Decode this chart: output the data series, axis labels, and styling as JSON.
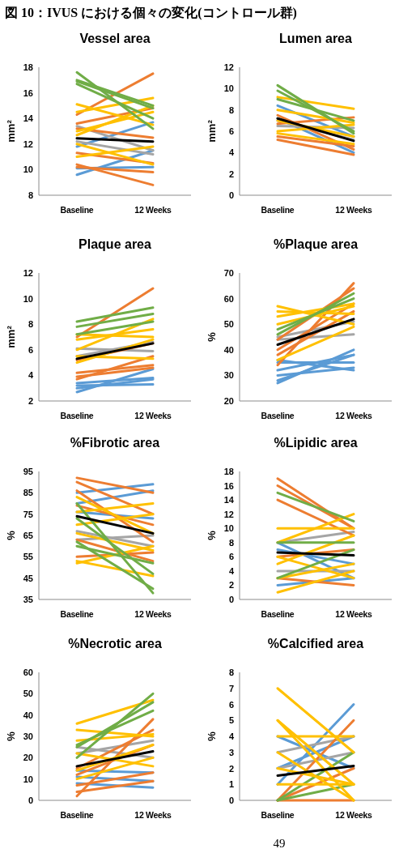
{
  "chart_data": [
    {
      "type": "line",
      "title": "Vessel area",
      "ylabel": "mm²",
      "categories": [
        "Baseline",
        "12 Weeks"
      ],
      "ylim": [
        8,
        18
      ],
      "yticks": [
        8,
        10,
        12,
        14,
        16,
        18
      ],
      "annotations": [
        "図 10：IVUS における個々の変化(コントロール群)"
      ],
      "series": [
        {
          "color": "#5b9bd5",
          "values": [
            9.6,
            11.5
          ]
        },
        {
          "color": "#5b9bd5",
          "values": [
            10.1,
            10.2
          ]
        },
        {
          "color": "#5b9bd5",
          "values": [
            11.8,
            13.7
          ]
        },
        {
          "color": "#a5a5a5",
          "values": [
            13.4,
            11.5
          ]
        },
        {
          "color": "#a5a5a5",
          "values": [
            12.2,
            11.2
          ]
        },
        {
          "color": "#ed7d31",
          "values": [
            14.3,
            17.5
          ]
        },
        {
          "color": "#ed7d31",
          "values": [
            13.6,
            14.8
          ]
        },
        {
          "color": "#ed7d31",
          "values": [
            10.4,
            8.8
          ]
        },
        {
          "color": "#ed7d31",
          "values": [
            10.2,
            9.8
          ]
        },
        {
          "color": "#ed7d31",
          "values": [
            11.3,
            10.5
          ]
        },
        {
          "color": "#ed7d31",
          "values": [
            13.2,
            12.5
          ]
        },
        {
          "color": "#ffc000",
          "values": [
            15.1,
            13.5
          ]
        },
        {
          "color": "#ffc000",
          "values": [
            14.5,
            15.6
          ]
        },
        {
          "color": "#ffc000",
          "values": [
            12.7,
            15.0
          ]
        },
        {
          "color": "#ffc000",
          "values": [
            12.0,
            10.4
          ]
        },
        {
          "color": "#ffc000",
          "values": [
            11.0,
            11.8
          ]
        },
        {
          "color": "#ffc000",
          "values": [
            13.0,
            14.5
          ]
        },
        {
          "color": "#70ad47",
          "values": [
            17.6,
            13.2
          ]
        },
        {
          "color": "#70ad47",
          "values": [
            16.9,
            14.8
          ]
        },
        {
          "color": "#70ad47",
          "values": [
            16.7,
            14.0
          ]
        },
        {
          "color": "#70ad47",
          "values": [
            17.0,
            15.0
          ]
        },
        {
          "color": "#000000",
          "values": [
            12.45,
            12.2
          ]
        }
      ]
    },
    {
      "type": "line",
      "title": "Lumen area",
      "ylabel": "mm²",
      "categories": [
        "Baseline",
        "12 Weeks"
      ],
      "ylim": [
        0,
        12
      ],
      "yticks": [
        0,
        2,
        4,
        6,
        8,
        10,
        12
      ],
      "series": [
        {
          "color": "#5b9bd5",
          "values": [
            8.4,
            5.5
          ]
        },
        {
          "color": "#5b9bd5",
          "values": [
            7.2,
            4.0
          ]
        },
        {
          "color": "#a5a5a5",
          "values": [
            7.0,
            5.2
          ]
        },
        {
          "color": "#a5a5a5",
          "values": [
            6.5,
            6.3
          ]
        },
        {
          "color": "#ed7d31",
          "values": [
            5.2,
            3.8
          ]
        },
        {
          "color": "#ed7d31",
          "values": [
            6.7,
            7.3
          ]
        },
        {
          "color": "#ed7d31",
          "values": [
            7.5,
            4.3
          ]
        },
        {
          "color": "#ed7d31",
          "values": [
            5.5,
            4.6
          ]
        },
        {
          "color": "#ffc000",
          "values": [
            9.2,
            8.1
          ]
        },
        {
          "color": "#ffc000",
          "values": [
            6.0,
            6.6
          ]
        },
        {
          "color": "#ffc000",
          "values": [
            5.8,
            4.8
          ]
        },
        {
          "color": "#ffc000",
          "values": [
            8.0,
            6.8
          ]
        },
        {
          "color": "#ffc000",
          "values": [
            7.0,
            5.5
          ]
        },
        {
          "color": "#70ad47",
          "values": [
            10.3,
            5.8
          ]
        },
        {
          "color": "#70ad47",
          "values": [
            9.8,
            6.0
          ]
        },
        {
          "color": "#70ad47",
          "values": [
            9.0,
            7.0
          ]
        },
        {
          "color": "#000000",
          "values": [
            7.2,
            5.1
          ]
        }
      ]
    },
    {
      "type": "line",
      "title": "Plaque area",
      "ylabel": "mm²",
      "categories": [
        "Baseline",
        "12 Weeks"
      ],
      "ylim": [
        2,
        12
      ],
      "yticks": [
        2,
        4,
        6,
        8,
        10,
        12
      ],
      "series": [
        {
          "color": "#5b9bd5",
          "values": [
            2.7,
            4.5
          ]
        },
        {
          "color": "#5b9bd5",
          "values": [
            3.2,
            3.3
          ]
        },
        {
          "color": "#5b9bd5",
          "values": [
            3.4,
            3.8
          ]
        },
        {
          "color": "#5b9bd5",
          "values": [
            3.0,
            3.7
          ]
        },
        {
          "color": "#a5a5a5",
          "values": [
            6.1,
            5.9
          ]
        },
        {
          "color": "#a5a5a5",
          "values": [
            5.5,
            6.6
          ]
        },
        {
          "color": "#ed7d31",
          "values": [
            7.0,
            10.8
          ]
        },
        {
          "color": "#ed7d31",
          "values": [
            3.7,
            5.5
          ]
        },
        {
          "color": "#ed7d31",
          "values": [
            4.2,
            4.8
          ]
        },
        {
          "color": "#ed7d31",
          "values": [
            5.2,
            6.5
          ]
        },
        {
          "color": "#ed7d31",
          "values": [
            3.9,
            4.6
          ]
        },
        {
          "color": "#ffc000",
          "values": [
            6.8,
            7.6
          ]
        },
        {
          "color": "#ffc000",
          "values": [
            6.0,
            8.4
          ]
        },
        {
          "color": "#ffc000",
          "values": [
            5.0,
            6.8
          ]
        },
        {
          "color": "#ffc000",
          "values": [
            5.5,
            5.3
          ]
        },
        {
          "color": "#ffc000",
          "values": [
            7.2,
            7.0
          ]
        },
        {
          "color": "#70ad47",
          "values": [
            8.2,
            9.3
          ]
        },
        {
          "color": "#70ad47",
          "values": [
            7.2,
            8.2
          ]
        },
        {
          "color": "#70ad47",
          "values": [
            7.8,
            8.8
          ]
        },
        {
          "color": "#000000",
          "values": [
            5.3,
            6.5
          ]
        }
      ]
    },
    {
      "type": "line",
      "title": "%Plaque area",
      "ylabel": "%",
      "categories": [
        "Baseline",
        "12 Weeks"
      ],
      "ylim": [
        20,
        70
      ],
      "yticks": [
        20,
        30,
        40,
        50,
        60,
        70
      ],
      "series": [
        {
          "color": "#5b9bd5",
          "values": [
            27,
            40
          ]
        },
        {
          "color": "#5b9bd5",
          "values": [
            30,
            33
          ]
        },
        {
          "color": "#5b9bd5",
          "values": [
            32,
            38
          ]
        },
        {
          "color": "#5b9bd5",
          "values": [
            35,
            35
          ]
        },
        {
          "color": "#5b9bd5",
          "values": [
            36,
            32
          ]
        },
        {
          "color": "#5b9bd5",
          "values": [
            28,
            38
          ]
        },
        {
          "color": "#a5a5a5",
          "values": [
            44,
            46
          ]
        },
        {
          "color": "#a5a5a5",
          "values": [
            45,
            51
          ]
        },
        {
          "color": "#ed7d31",
          "values": [
            34,
            66
          ]
        },
        {
          "color": "#ed7d31",
          "values": [
            40,
            58
          ]
        },
        {
          "color": "#ed7d31",
          "values": [
            44,
            64
          ]
        },
        {
          "color": "#ed7d31",
          "values": [
            38,
            55
          ]
        },
        {
          "color": "#ffc000",
          "values": [
            57,
            50
          ]
        },
        {
          "color": "#ffc000",
          "values": [
            55,
            54
          ]
        },
        {
          "color": "#ffc000",
          "values": [
            50,
            57
          ]
        },
        {
          "color": "#ffc000",
          "values": [
            36,
            49
          ]
        },
        {
          "color": "#ffc000",
          "values": [
            53,
            58
          ]
        },
        {
          "color": "#70ad47",
          "values": [
            46,
            62
          ]
        },
        {
          "color": "#70ad47",
          "values": [
            48,
            60
          ]
        },
        {
          "color": "#000000",
          "values": [
            42,
            52
          ]
        }
      ]
    },
    {
      "type": "line",
      "title": "%Fibrotic area",
      "ylabel": "%",
      "categories": [
        "Baseline",
        "12 Weeks"
      ],
      "ylim": [
        35,
        95
      ],
      "yticks": [
        35,
        45,
        55,
        65,
        75,
        85,
        95
      ],
      "series": [
        {
          "color": "#5b9bd5",
          "values": [
            85,
            89
          ]
        },
        {
          "color": "#5b9bd5",
          "values": [
            80,
            86
          ]
        },
        {
          "color": "#5b9bd5",
          "values": [
            76,
            73
          ]
        },
        {
          "color": "#a5a5a5",
          "values": [
            67,
            60
          ]
        },
        {
          "color": "#a5a5a5",
          "values": [
            63,
            65
          ]
        },
        {
          "color": "#ed7d31",
          "values": [
            92,
            85
          ]
        },
        {
          "color": "#ed7d31",
          "values": [
            90,
            75
          ]
        },
        {
          "color": "#ed7d31",
          "values": [
            86,
            62
          ]
        },
        {
          "color": "#ed7d31",
          "values": [
            79,
            70
          ]
        },
        {
          "color": "#ed7d31",
          "values": [
            63,
            53
          ]
        },
        {
          "color": "#ed7d31",
          "values": [
            55,
            57
          ]
        },
        {
          "color": "#ffc000",
          "values": [
            83,
            66
          ]
        },
        {
          "color": "#ffc000",
          "values": [
            76,
            80
          ]
        },
        {
          "color": "#ffc000",
          "values": [
            70,
            75
          ]
        },
        {
          "color": "#ffc000",
          "values": [
            53,
            46
          ]
        },
        {
          "color": "#ffc000",
          "values": [
            52,
            60
          ]
        },
        {
          "color": "#ffc000",
          "values": [
            66,
            58
          ]
        },
        {
          "color": "#70ad47",
          "values": [
            80,
            38
          ]
        },
        {
          "color": "#70ad47",
          "values": [
            73,
            47
          ]
        },
        {
          "color": "#70ad47",
          "values": [
            62,
            40
          ]
        },
        {
          "color": "#70ad47",
          "values": [
            60,
            52
          ]
        },
        {
          "color": "#000000",
          "values": [
            74,
            66
          ]
        }
      ]
    },
    {
      "type": "line",
      "title": "%Lipidic area",
      "ylabel": "%",
      "categories": [
        "Baseline",
        "12 Weeks"
      ],
      "ylim": [
        0,
        18
      ],
      "yticks": [
        0,
        2,
        4,
        6,
        8,
        10,
        12,
        14,
        16,
        18
      ],
      "series": [
        {
          "color": "#5b9bd5",
          "values": [
            8,
            3
          ]
        },
        {
          "color": "#5b9bd5",
          "values": [
            2,
            3
          ]
        },
        {
          "color": "#5b9bd5",
          "values": [
            7,
            5
          ]
        },
        {
          "color": "#a5a5a5",
          "values": [
            8,
            9.5
          ]
        },
        {
          "color": "#a5a5a5",
          "values": [
            4,
            4
          ]
        },
        {
          "color": "#ed7d31",
          "values": [
            17,
            10
          ]
        },
        {
          "color": "#ed7d31",
          "values": [
            16,
            10
          ]
        },
        {
          "color": "#ed7d31",
          "values": [
            14,
            9
          ]
        },
        {
          "color": "#ed7d31",
          "values": [
            3,
            2
          ]
        },
        {
          "color": "#ed7d31",
          "values": [
            6,
            7
          ]
        },
        {
          "color": "#ffc000",
          "values": [
            10,
            10
          ]
        },
        {
          "color": "#ffc000",
          "values": [
            8,
            12
          ]
        },
        {
          "color": "#ffc000",
          "values": [
            1,
            4
          ]
        },
        {
          "color": "#ffc000",
          "values": [
            6,
            3
          ]
        },
        {
          "color": "#ffc000",
          "values": [
            5,
            9
          ]
        },
        {
          "color": "#ffc000",
          "values": [
            3,
            5
          ]
        },
        {
          "color": "#70ad47",
          "values": [
            15,
            11
          ]
        },
        {
          "color": "#70ad47",
          "values": [
            8,
            8
          ]
        },
        {
          "color": "#70ad47",
          "values": [
            3,
            7
          ]
        },
        {
          "color": "#000000",
          "values": [
            6.6,
            6.2
          ]
        }
      ]
    },
    {
      "type": "line",
      "title": "%Necrotic area",
      "ylabel": "%",
      "categories": [
        "Baseline",
        "12 Weeks"
      ],
      "ylim": [
        0,
        60
      ],
      "yticks": [
        0,
        10,
        20,
        30,
        40,
        50,
        60
      ],
      "series": [
        {
          "color": "#5b9bd5",
          "values": [
            8,
            6
          ]
        },
        {
          "color": "#5b9bd5",
          "values": [
            11,
            9
          ]
        },
        {
          "color": "#5b9bd5",
          "values": [
            14,
            13
          ]
        },
        {
          "color": "#a5a5a5",
          "values": [
            22,
            28
          ]
        },
        {
          "color": "#a5a5a5",
          "values": [
            25,
            20
          ]
        },
        {
          "color": "#ed7d31",
          "values": [
            2,
            38
          ]
        },
        {
          "color": "#ed7d31",
          "values": [
            4,
            9
          ]
        },
        {
          "color": "#ed7d31",
          "values": [
            7,
            13
          ]
        },
        {
          "color": "#ed7d31",
          "values": [
            15,
            33
          ]
        },
        {
          "color": "#ed7d31",
          "values": [
            12,
            26
          ]
        },
        {
          "color": "#ffc000",
          "values": [
            36,
            47
          ]
        },
        {
          "color": "#ffc000",
          "values": [
            33,
            30
          ]
        },
        {
          "color": "#ffc000",
          "values": [
            28,
            31
          ]
        },
        {
          "color": "#ffc000",
          "values": [
            14,
            26
          ]
        },
        {
          "color": "#ffc000",
          "values": [
            22,
            16
          ]
        },
        {
          "color": "#ffc000",
          "values": [
            10,
            20
          ]
        },
        {
          "color": "#70ad47",
          "values": [
            20,
            50
          ]
        },
        {
          "color": "#70ad47",
          "values": [
            25,
            46
          ]
        },
        {
          "color": "#70ad47",
          "values": [
            26,
            42
          ]
        },
        {
          "color": "#000000",
          "values": [
            16,
            23
          ]
        }
      ]
    },
    {
      "type": "line",
      "title": "%Calcified area",
      "ylabel": "%",
      "categories": [
        "Baseline",
        "12 Weeks"
      ],
      "ylim": [
        0,
        8
      ],
      "yticks": [
        0,
        1,
        2,
        3,
        4,
        5,
        6,
        7,
        8
      ],
      "annotations": [
        "49"
      ],
      "series": [
        {
          "color": "#5b9bd5",
          "values": [
            1,
            6
          ]
        },
        {
          "color": "#5b9bd5",
          "values": [
            4,
            2
          ]
        },
        {
          "color": "#5b9bd5",
          "values": [
            2,
            4
          ]
        },
        {
          "color": "#a5a5a5",
          "values": [
            3,
            4
          ]
        },
        {
          "color": "#a5a5a5",
          "values": [
            2,
            3
          ]
        },
        {
          "color": "#ed7d31",
          "values": [
            0,
            5
          ]
        },
        {
          "color": "#ed7d31",
          "values": [
            0,
            2
          ]
        },
        {
          "color": "#ed7d31",
          "values": [
            0,
            0
          ]
        },
        {
          "color": "#70ad47",
          "values": [
            0,
            3
          ]
        },
        {
          "color": "#70ad47",
          "values": [
            0,
            1
          ]
        },
        {
          "color": "#ffc000",
          "values": [
            7,
            3
          ]
        },
        {
          "color": "#ffc000",
          "values": [
            5,
            1
          ]
        },
        {
          "color": "#ffc000",
          "values": [
            4,
            4
          ]
        },
        {
          "color": "#ffc000",
          "values": [
            3,
            0
          ]
        },
        {
          "color": "#ffc000",
          "values": [
            2,
            1
          ]
        },
        {
          "color": "#ffc000",
          "values": [
            1,
            1
          ]
        },
        {
          "color": "#ffc000",
          "values": [
            5,
            0
          ]
        },
        {
          "color": "#000000",
          "values": [
            1.55,
            2.15
          ]
        }
      ]
    }
  ]
}
